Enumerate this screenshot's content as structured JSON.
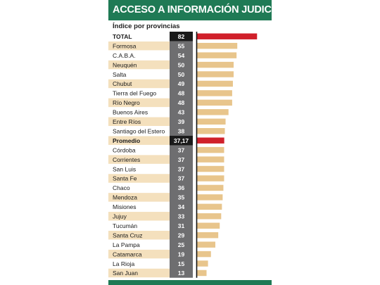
{
  "header": {
    "title": "ACCESO A INFORMACIÓN JUDICIAL",
    "subtitle": "Índice por provincias"
  },
  "colors": {
    "header_green": "#1f7a55",
    "highlight_red": "#d0202a",
    "bar_tan": "#e8c58c",
    "row_shade": "#f4e0bd",
    "value_col": "#6e6e70",
    "value_col_dark": "#1a1a1a"
  },
  "chart_data": {
    "type": "bar",
    "title": "ACCESO A INFORMACIÓN JUDICIAL",
    "subtitle": "Índice por provincias",
    "orientation": "horizontal",
    "xlim": [
      0,
      100
    ],
    "categories": [
      "TOTAL",
      "Formosa",
      "C.A.B.A.",
      "Neuquén",
      "Salta",
      "Chubut",
      "Tierra del Fuego",
      "Río Negro",
      "Buenos Aires",
      "Entre Ríos",
      "Santiago del Estero",
      "Promedio",
      "Córdoba",
      "Corrientes",
      "San Luis",
      "Santa Fe",
      "Chaco",
      "Mendoza",
      "Misiones",
      "Jujuy",
      "Tucumán",
      "Santa Cruz",
      "La Pampa",
      "Catamarca",
      "La Rioja",
      "San Juan"
    ],
    "values": [
      82,
      55,
      54,
      50,
      50,
      49,
      48,
      48,
      43,
      39,
      38,
      37.17,
      37,
      37,
      37,
      37,
      36,
      35,
      34,
      33,
      31,
      29,
      25,
      19,
      15,
      13
    ],
    "value_labels": [
      "82",
      "55",
      "54",
      "50",
      "50",
      "49",
      "48",
      "48",
      "43",
      "39",
      "38",
      "37,17",
      "37",
      "37",
      "37",
      "37",
      "36",
      "35",
      "34",
      "33",
      "31",
      "29",
      "25",
      "19",
      "15",
      "13"
    ],
    "highlighted": [
      "TOTAL",
      "Promedio"
    ]
  }
}
